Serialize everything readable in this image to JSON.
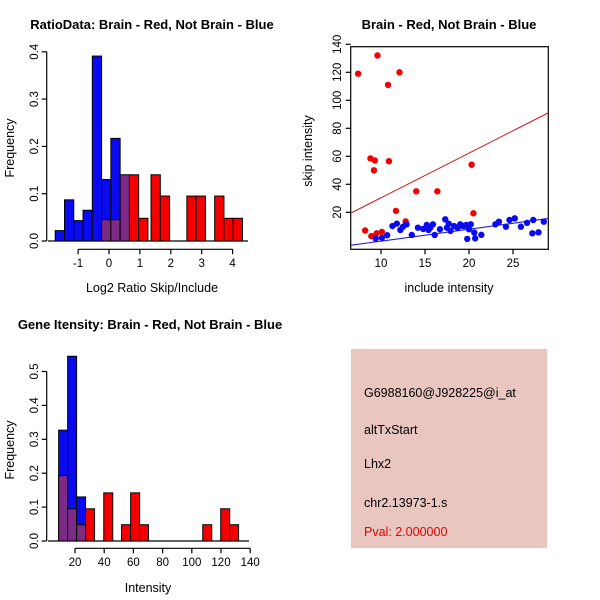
{
  "window": {
    "background": "#FFFFFF"
  },
  "colors": {
    "blue": "#0A0AF0",
    "red": "#F40000",
    "purple": "#7D2A87",
    "blue_line": "#2222CC",
    "red_line": "#CC2020",
    "axis": "#000000",
    "text": "#000000",
    "info_bg": "#E9C6C0",
    "pval": "#E60000"
  },
  "chart_data": [
    {
      "id": "ratio_hist",
      "type": "histogram",
      "title": "RatioData: Brain - Red, Not Brain - Blue",
      "xlabel": "Log2 Ratio Skip/Include",
      "ylabel": "Frequency",
      "xlim": [
        -1.8,
        4.35
      ],
      "ylim": [
        0,
        0.4
      ],
      "grid": false,
      "xtick_vals": [
        -1,
        0,
        1,
        2,
        3,
        4
      ],
      "xtick_labels": [
        "-1",
        "0",
        "1",
        "2",
        "3",
        "4"
      ],
      "ytick_vals": [
        0,
        0.1,
        0.2,
        0.3,
        0.4
      ],
      "ytick_labels": [
        "0.0",
        "0.1",
        "0.2",
        "0.3",
        "0.4"
      ],
      "bin_width": 0.3,
      "series": [
        {
          "name": "not_brain_blue",
          "color": "blue",
          "bars": [
            [
              -1.74,
              0.022
            ],
            [
              -1.44,
              0.087
            ],
            [
              -1.14,
              0.043
            ],
            [
              -0.84,
              0.065
            ],
            [
              -0.54,
              0.391
            ],
            [
              -0.24,
              0.13
            ],
            [
              0.06,
              0.217
            ]
          ]
        },
        {
          "name": "brain_red",
          "color": "red",
          "bars": [
            [
              0.66,
              0.14
            ],
            [
              0.96,
              0.048
            ],
            [
              1.36,
              0.14
            ],
            [
              1.66,
              0.095
            ],
            [
              2.52,
              0.095
            ],
            [
              2.82,
              0.095
            ],
            [
              3.42,
              0.095
            ],
            [
              3.72,
              0.048
            ],
            [
              4.02,
              0.048
            ]
          ]
        },
        {
          "name": "overlap_purple",
          "color": "purple",
          "bars": [
            [
              -0.24,
              0.045
            ],
            [
              0.06,
              0.045
            ],
            [
              0.36,
              0.14
            ]
          ]
        }
      ]
    },
    {
      "id": "intensity_scatter",
      "type": "scatter",
      "title": "Brain - Red, Not Brain - Blue",
      "xlabel": "include intensity",
      "ylabel": "skip intensity",
      "xlim": [
        6.6,
        29.0
      ],
      "ylim": [
        -6,
        145
      ],
      "grid": false,
      "xtick_vals": [
        10,
        15,
        20,
        25
      ],
      "xtick_labels": [
        "10",
        "15",
        "20",
        "25"
      ],
      "ytick_vals": [
        20,
        40,
        60,
        80,
        100,
        120,
        140
      ],
      "ytick_labels": [
        "20",
        "40",
        "60",
        "80",
        "100",
        "120",
        "140"
      ],
      "series": [
        {
          "name": "brain_red",
          "color": "red",
          "points": [
            [
              7.4,
              119
            ],
            [
              9.6,
              132
            ],
            [
              10.8,
              111
            ],
            [
              12.1,
              120
            ],
            [
              8.8,
              58.5
            ],
            [
              9.3,
              57
            ],
            [
              9.2,
              50
            ],
            [
              10.9,
              56.5
            ],
            [
              14.0,
              35
            ],
            [
              16.4,
              35
            ],
            [
              20.3,
              54
            ],
            [
              11.7,
              21
            ],
            [
              12.8,
              13.5
            ],
            [
              20.5,
              19.3
            ],
            [
              8.2,
              7
            ],
            [
              8.9,
              3
            ],
            [
              9.5,
              5
            ],
            [
              10.1,
              6
            ]
          ]
        },
        {
          "name": "not_brain_blue",
          "color": "blue",
          "points": [
            [
              9.4,
              1.2
            ],
            [
              10.1,
              1.8
            ],
            [
              10.7,
              3.6
            ],
            [
              11.3,
              10.2
            ],
            [
              11.8,
              11.9
            ],
            [
              12.2,
              7.4
            ],
            [
              12.5,
              9.7
            ],
            [
              12.9,
              11.4
            ],
            [
              13.5,
              3.8
            ],
            [
              14.2,
              9.0
            ],
            [
              14.8,
              8.1
            ],
            [
              15.2,
              11.0
            ],
            [
              15.4,
              7.4
            ],
            [
              15.6,
              9.0
            ],
            [
              15.9,
              11.4
            ],
            [
              16.1,
              3.8
            ],
            [
              16.7,
              7.9
            ],
            [
              17.3,
              15.0
            ],
            [
              17.5,
              9.0
            ],
            [
              17.7,
              11.9
            ],
            [
              17.9,
              6.7
            ],
            [
              18.3,
              10.2
            ],
            [
              18.7,
              9.0
            ],
            [
              19.0,
              11.4
            ],
            [
              19.2,
              10.4
            ],
            [
              19.4,
              10.2
            ],
            [
              19.7,
              11.0
            ],
            [
              19.8,
              1.0
            ],
            [
              20.0,
              7.9
            ],
            [
              20.2,
              11.4
            ],
            [
              20.6,
              5.5
            ],
            [
              20.7,
              1.4
            ],
            [
              21.4,
              3.9
            ],
            [
              23.0,
              11.4
            ],
            [
              23.4,
              13.3
            ],
            [
              24.2,
              9.7
            ],
            [
              24.6,
              14.5
            ],
            [
              25.2,
              15.7
            ],
            [
              25.9,
              9.7
            ],
            [
              26.6,
              12.5
            ],
            [
              27.2,
              5.0
            ],
            [
              27.3,
              14.5
            ],
            [
              27.9,
              5.7
            ],
            [
              28.5,
              13.3
            ]
          ]
        }
      ],
      "lines": [
        {
          "name": "brain_fit",
          "color": "red_line",
          "from": [
            6.6,
            19.5
          ],
          "to": [
            29.0,
            91.0
          ]
        },
        {
          "name": "not_brain_fit",
          "color": "blue_line",
          "from": [
            6.6,
            -3.5
          ],
          "to": [
            29.0,
            15.6
          ]
        }
      ]
    },
    {
      "id": "gene_hist",
      "type": "histogram",
      "title": "Gene Itensity: Brain - Red, Not Brain - Blue",
      "xlabel": "Intensity",
      "ylabel": "Frequency",
      "xlim": [
        5,
        142
      ],
      "ylim": [
        0,
        0.55
      ],
      "grid": false,
      "xtick_vals": [
        20,
        40,
        60,
        80,
        100,
        120,
        140
      ],
      "xtick_labels": [
        "20",
        "40",
        "60",
        "80",
        "100",
        "120",
        "140"
      ],
      "ytick_vals": [
        0,
        0.1,
        0.2,
        0.3,
        0.4,
        0.5
      ],
      "ytick_labels": [
        "0.0",
        "0.1",
        "0.2",
        "0.3",
        "0.4",
        "0.5"
      ],
      "bin_width": 6.15,
      "series": [
        {
          "name": "not_brain_blue",
          "color": "blue",
          "bars": [
            [
              8.8,
              0.327
            ],
            [
              14.95,
              0.545
            ],
            [
              21.1,
              0.13
            ]
          ]
        },
        {
          "name": "brain_red",
          "color": "red",
          "bars": [
            [
              27.25,
              0.095
            ],
            [
              39.7,
              0.142
            ],
            [
              51.9,
              0.048
            ],
            [
              58.1,
              0.142
            ],
            [
              64.2,
              0.048
            ],
            [
              107.5,
              0.048
            ],
            [
              119.8,
              0.095
            ],
            [
              125.9,
              0.048
            ]
          ]
        },
        {
          "name": "overlap_purple",
          "color": "purple",
          "bars": [
            [
              8.8,
              0.193
            ],
            [
              14.95,
              0.095
            ],
            [
              21.1,
              0.048
            ]
          ]
        }
      ]
    }
  ],
  "info_panel": {
    "lines": [
      "G6988160@J928225@i_at",
      "altTxStart",
      "Lhx2",
      "chr2.13973-1.s"
    ],
    "pval": "Pval: 2.000000"
  }
}
